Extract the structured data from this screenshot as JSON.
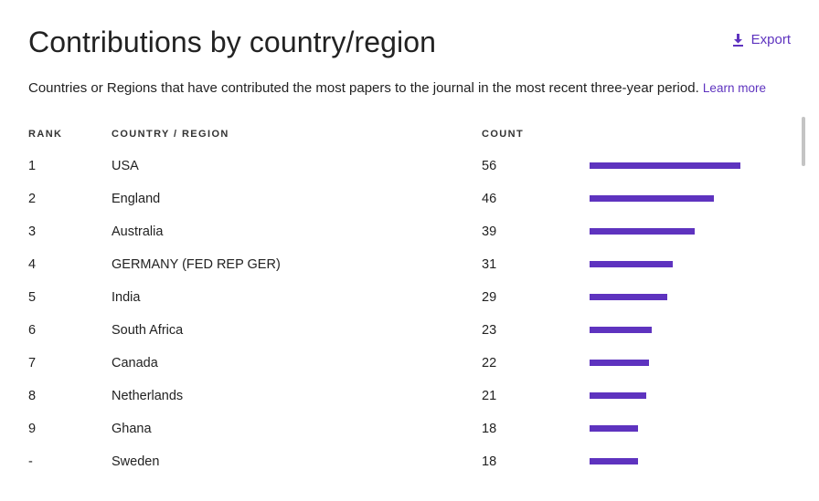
{
  "header": {
    "title": "Contributions by country/region",
    "export_label": "Export",
    "subtitle": "Countries or Regions that have contributed the most papers to the journal in the most recent three-year period.",
    "learn_more": "Learn more"
  },
  "columns": {
    "rank": "RANK",
    "country": "COUNTRY / REGION",
    "count": "COUNT"
  },
  "accent_color": "#5e33bf",
  "rows": [
    {
      "rank": "1",
      "country": "USA",
      "count": "56"
    },
    {
      "rank": "2",
      "country": "England",
      "count": "46"
    },
    {
      "rank": "3",
      "country": "Australia",
      "count": "39"
    },
    {
      "rank": "4",
      "country": "GERMANY (FED REP GER)",
      "count": "31"
    },
    {
      "rank": "5",
      "country": "India",
      "count": "29"
    },
    {
      "rank": "6",
      "country": "South Africa",
      "count": "23"
    },
    {
      "rank": "7",
      "country": "Canada",
      "count": "22"
    },
    {
      "rank": "8",
      "country": "Netherlands",
      "count": "21"
    },
    {
      "rank": "9",
      "country": "Ghana",
      "count": "18"
    },
    {
      "rank": "-",
      "country": "Sweden",
      "count": "18"
    }
  ]
}
